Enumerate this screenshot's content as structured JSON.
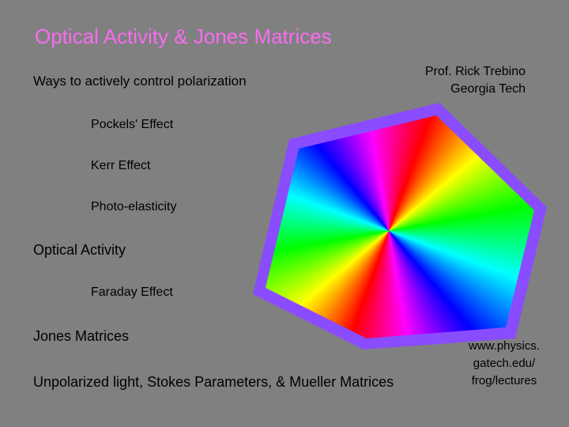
{
  "slide": {
    "title": "Optical Activity & Jones Matrices",
    "subtitle": "Ways to actively control polarization",
    "author": [
      "Prof. Rick Trebino",
      "Georgia Tech"
    ],
    "items": [
      {
        "text": "Pockels' Effect",
        "level": 2
      },
      {
        "text": "Kerr Effect",
        "level": 2
      },
      {
        "text": "Photo-elasticity",
        "level": 2
      },
      {
        "text": "Optical Activity",
        "level": 1
      },
      {
        "text": "Faraday Effect",
        "level": 2
      },
      {
        "text": "Jones Matrices",
        "level": 1
      },
      {
        "text": "Unpolarized light, Stokes Parameters, & Mueller Matrices",
        "level": 1
      }
    ],
    "url": [
      "www.physics.",
      "gatech.edu/",
      "frog/lectures"
    ]
  }
}
